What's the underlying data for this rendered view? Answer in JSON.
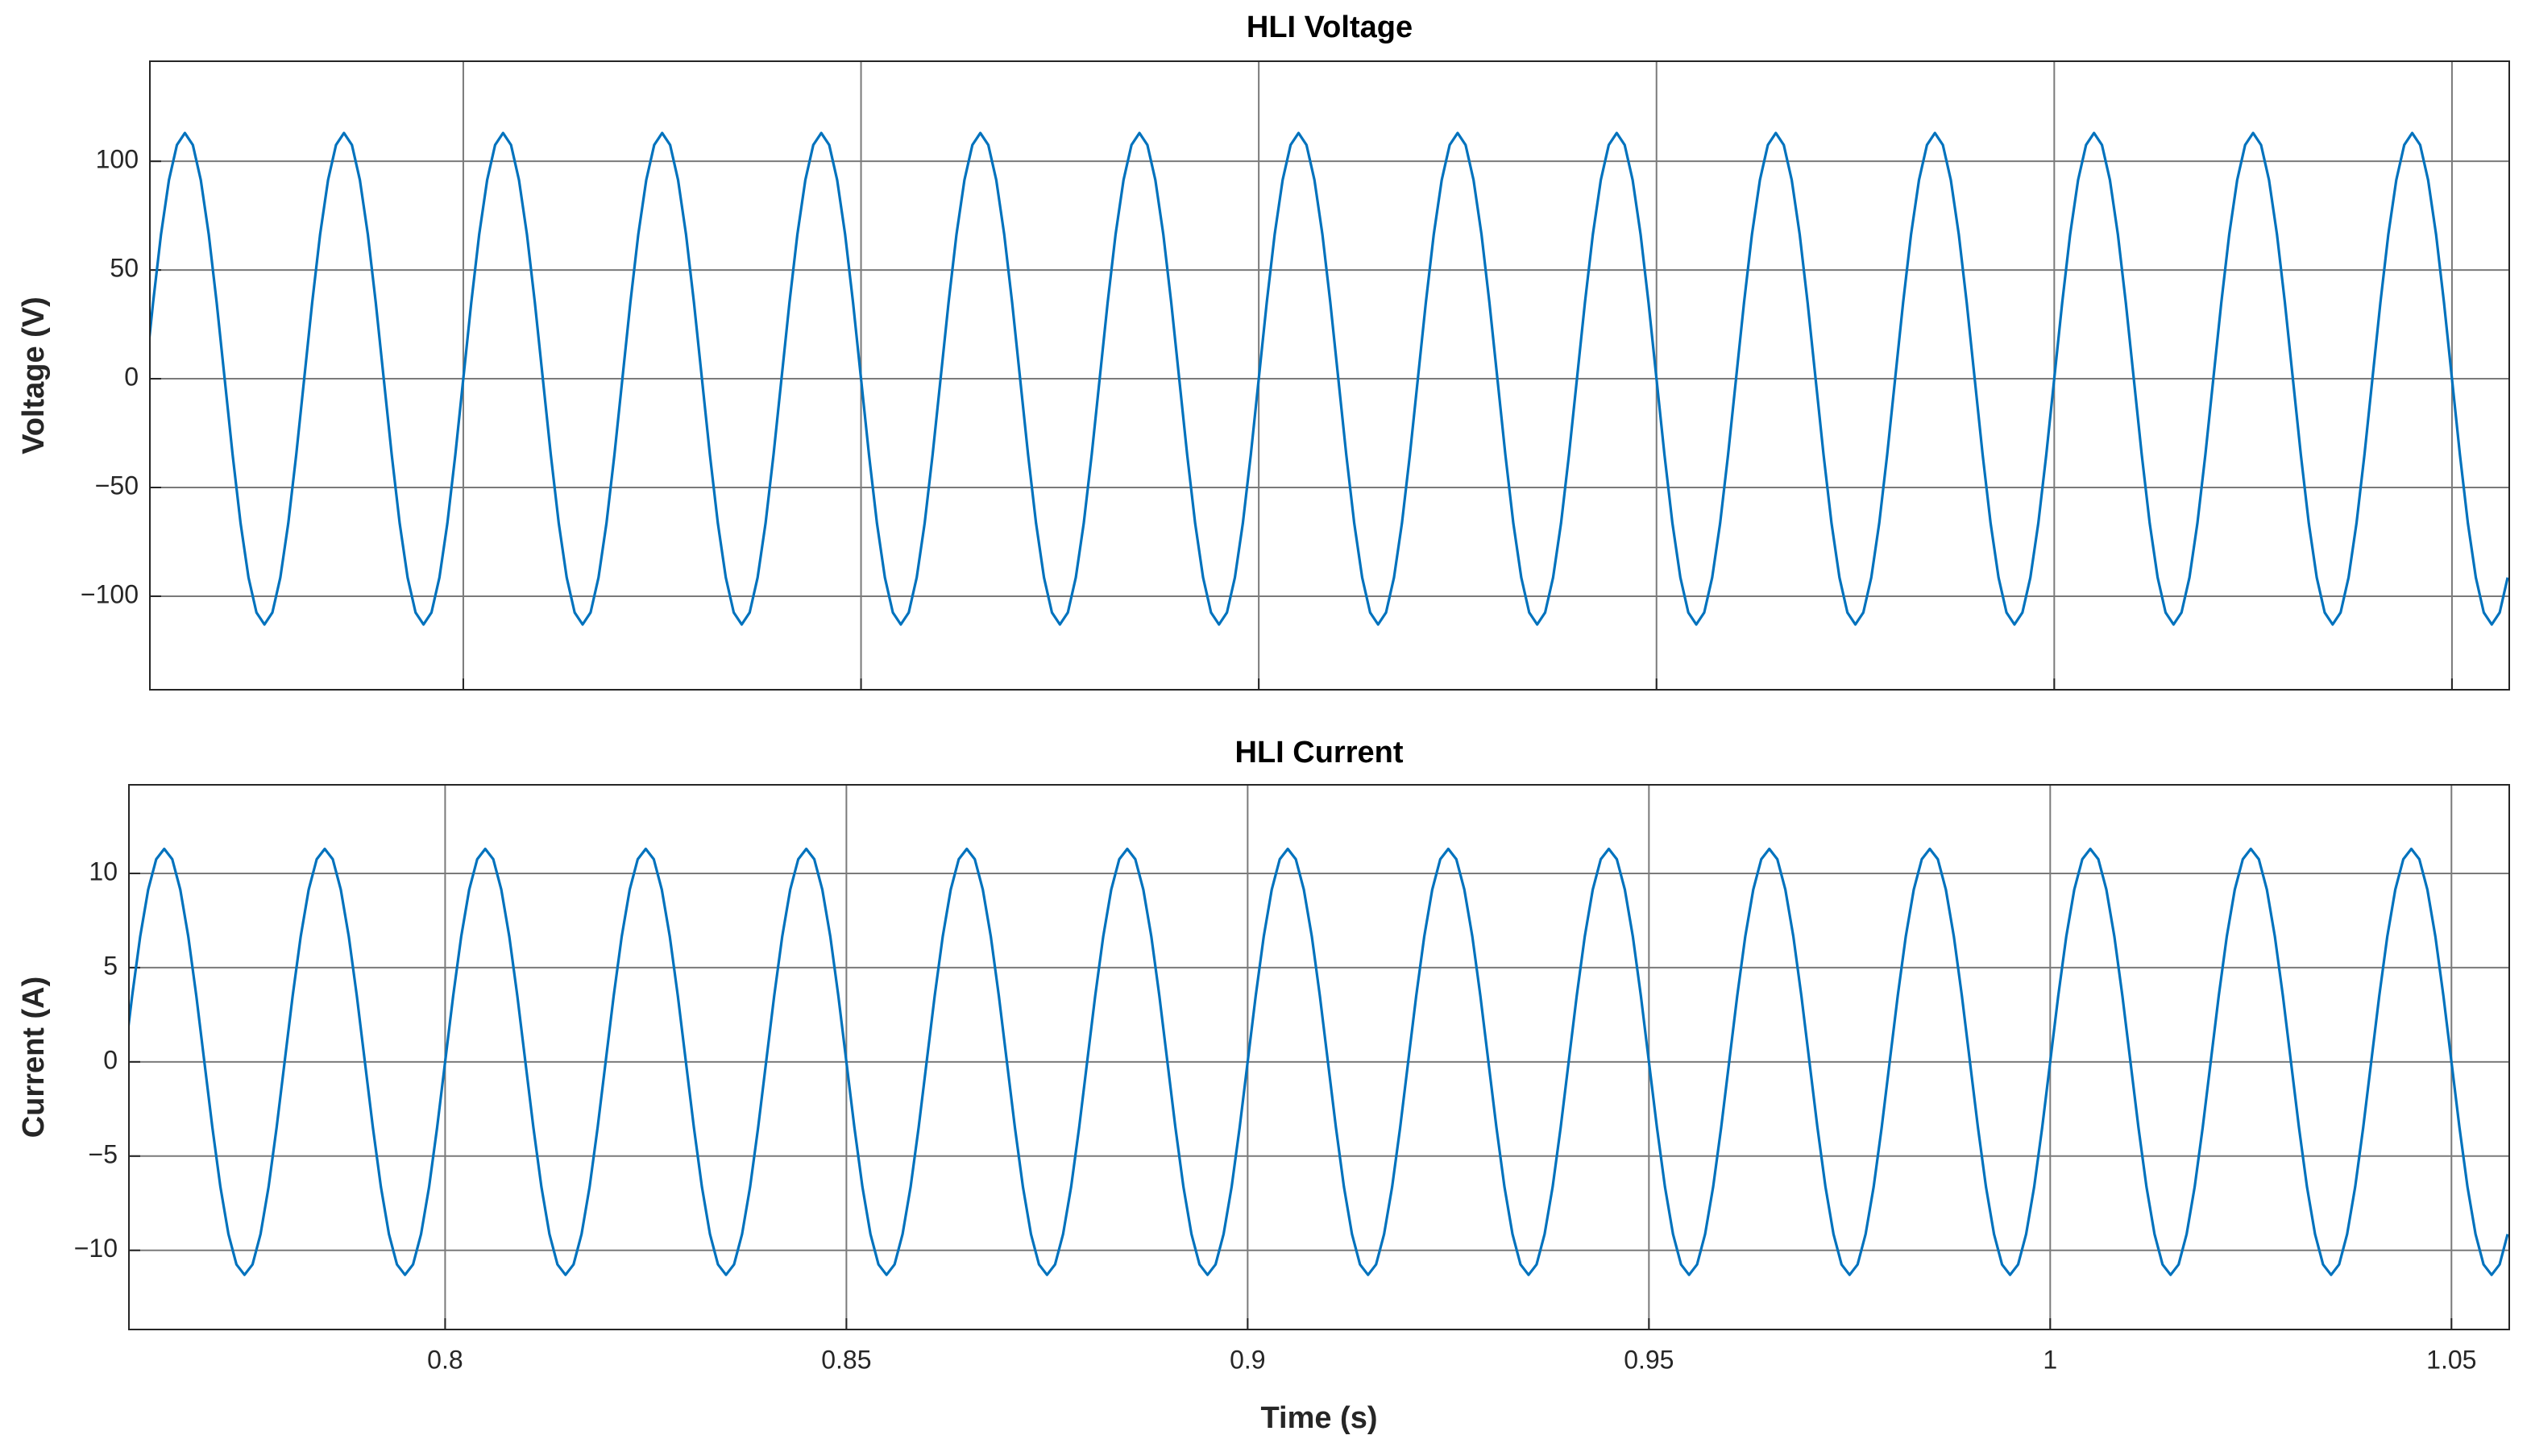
{
  "chart_data": [
    {
      "type": "line",
      "title": "HLI Voltage",
      "ylabel": "Voltage (V)",
      "color": "#0072bd",
      "grid": true,
      "xlim": [
        0.7606,
        1.0572
      ],
      "xticks": [
        0.8,
        0.85,
        0.9,
        0.95,
        1,
        1.05
      ],
      "ylim": [
        -143,
        146
      ],
      "yticks": [
        {
          "value": -100,
          "label": "−100"
        },
        {
          "value": -50,
          "label": "−50"
        },
        0,
        50,
        100
      ],
      "x": [
        0.76,
        0.761,
        0.762,
        0.763,
        0.764,
        0.765,
        0.766,
        0.767,
        0.768,
        0.769,
        0.77,
        0.771,
        0.772,
        0.773,
        0.774,
        0.775,
        0.776,
        0.777,
        0.778,
        0.779,
        0.78,
        0.781,
        0.782,
        0.783,
        0.784,
        0.785,
        0.786,
        0.787,
        0.788,
        0.789,
        0.79,
        0.791,
        0.792,
        0.793,
        0.794,
        0.795,
        0.796,
        0.797,
        0.798,
        0.799,
        0.8,
        0.801,
        0.802,
        0.803,
        0.804,
        0.805,
        0.806,
        0.807,
        0.808,
        0.809,
        0.81,
        0.811,
        0.812,
        0.813,
        0.814,
        0.815,
        0.816,
        0.817,
        0.818,
        0.819,
        0.82,
        0.821,
        0.822,
        0.823,
        0.824,
        0.825,
        0.826,
        0.827,
        0.828,
        0.829,
        0.83,
        0.831,
        0.832,
        0.833,
        0.834,
        0.835,
        0.836,
        0.837,
        0.838,
        0.839,
        0.84,
        0.841,
        0.842,
        0.843,
        0.844,
        0.845,
        0.846,
        0.847,
        0.848,
        0.849,
        0.85,
        0.851,
        0.852,
        0.853,
        0.854,
        0.855,
        0.856,
        0.857,
        0.858,
        0.859,
        0.86,
        0.861,
        0.862,
        0.863,
        0.864,
        0.865,
        0.866,
        0.867,
        0.868,
        0.869,
        0.87,
        0.871,
        0.872,
        0.873,
        0.874,
        0.875,
        0.876,
        0.877,
        0.878,
        0.879,
        0.88,
        0.881,
        0.882,
        0.883,
        0.884,
        0.885,
        0.886,
        0.887,
        0.888,
        0.889,
        0.89,
        0.891,
        0.892,
        0.893,
        0.894,
        0.895,
        0.896,
        0.897,
        0.898,
        0.899,
        0.9,
        0.901,
        0.902,
        0.903,
        0.904,
        0.905,
        0.906,
        0.907,
        0.908,
        0.909,
        0.91,
        0.911,
        0.912,
        0.913,
        0.914,
        0.915,
        0.916,
        0.917,
        0.918,
        0.919,
        0.92,
        0.921,
        0.922,
        0.923,
        0.924,
        0.925,
        0.926,
        0.927,
        0.928,
        0.929,
        0.93,
        0.931,
        0.932,
        0.933,
        0.934,
        0.935,
        0.936,
        0.937,
        0.938,
        0.939,
        0.94,
        0.941,
        0.942,
        0.943,
        0.944,
        0.945,
        0.946,
        0.947,
        0.948,
        0.949,
        0.95,
        0.951,
        0.952,
        0.953,
        0.954,
        0.955,
        0.956,
        0.957,
        0.958,
        0.959,
        0.96,
        0.961,
        0.962,
        0.963,
        0.964,
        0.965,
        0.966,
        0.967,
        0.968,
        0.969,
        0.97,
        0.971,
        0.972,
        0.973,
        0.974,
        0.975,
        0.976,
        0.977,
        0.978,
        0.979,
        0.98,
        0.981,
        0.982,
        0.983,
        0.984,
        0.985,
        0.986,
        0.987,
        0.988,
        0.989,
        0.99,
        0.991,
        0.992,
        0.993,
        0.994,
        0.995,
        0.996,
        0.997,
        0.998,
        0.999,
        1,
        1.001,
        1.002,
        1.003,
        1.004,
        1.005,
        1.006,
        1.007,
        1.008,
        1.009,
        1.01,
        1.011,
        1.012,
        1.013,
        1.014,
        1.015,
        1.016,
        1.017,
        1.018,
        1.019,
        1.02,
        1.021,
        1.022,
        1.023,
        1.024,
        1.025,
        1.026,
        1.027,
        1.028,
        1.029,
        1.03,
        1.031,
        1.032,
        1.033,
        1.034,
        1.035,
        1.036,
        1.037,
        1.038,
        1.039,
        1.04,
        1.041,
        1.042,
        1.043,
        1.044,
        1.045,
        1.046,
        1.047,
        1.048,
        1.049,
        1.05,
        1.051,
        1.052,
        1.053,
        1.054,
        1.055,
        1.056,
        1.057
      ],
      "values": [
        0,
        34.9,
        66.4,
        91.4,
        107.5,
        113,
        107.5,
        91.4,
        66.4,
        34.9,
        0,
        -34.9,
        -66.4,
        -91.4,
        -107.5,
        -113,
        -107.5,
        -91.4,
        -66.4,
        -34.9,
        0,
        34.9,
        66.4,
        91.4,
        107.5,
        113,
        107.5,
        91.4,
        66.4,
        34.9,
        0,
        -34.9,
        -66.4,
        -91.4,
        -107.5,
        -113,
        -107.5,
        -91.4,
        -66.4,
        -34.9,
        0,
        34.9,
        66.4,
        91.4,
        107.5,
        113,
        107.5,
        91.4,
        66.4,
        34.9,
        0,
        -34.9,
        -66.4,
        -91.4,
        -107.5,
        -113,
        -107.5,
        -91.4,
        -66.4,
        -34.9,
        0,
        34.9,
        66.4,
        91.4,
        107.5,
        113,
        107.5,
        91.4,
        66.4,
        34.9,
        0,
        -34.9,
        -66.4,
        -91.4,
        -107.5,
        -113,
        -107.5,
        -91.4,
        -66.4,
        -34.9,
        0,
        34.9,
        66.4,
        91.4,
        107.5,
        113,
        107.5,
        91.4,
        66.4,
        34.9,
        0,
        -34.9,
        -66.4,
        -91.4,
        -107.5,
        -113,
        -107.5,
        -91.4,
        -66.4,
        -34.9,
        0,
        34.9,
        66.4,
        91.4,
        107.5,
        113,
        107.5,
        91.4,
        66.4,
        34.9,
        0,
        -34.9,
        -66.4,
        -91.4,
        -107.5,
        -113,
        -107.5,
        -91.4,
        -66.4,
        -34.9,
        0,
        34.9,
        66.4,
        91.4,
        107.5,
        113,
        107.5,
        91.4,
        66.4,
        34.9,
        0,
        -34.9,
        -66.4,
        -91.4,
        -107.5,
        -113,
        -107.5,
        -91.4,
        -66.4,
        -34.9,
        0,
        34.9,
        66.4,
        91.4,
        107.5,
        113,
        107.5,
        91.4,
        66.4,
        34.9,
        0,
        -34.9,
        -66.4,
        -91.4,
        -107.5,
        -113,
        -107.5,
        -91.4,
        -66.4,
        -34.9,
        0,
        34.9,
        66.4,
        91.4,
        107.5,
        113,
        107.5,
        91.4,
        66.4,
        34.9,
        0,
        -34.9,
        -66.4,
        -91.4,
        -107.5,
        -113,
        -107.5,
        -91.4,
        -66.4,
        -34.9,
        0,
        34.9,
        66.4,
        91.4,
        107.5,
        113,
        107.5,
        91.4,
        66.4,
        34.9,
        0,
        -34.9,
        -66.4,
        -91.4,
        -107.5,
        -113,
        -107.5,
        -91.4,
        -66.4,
        -34.9,
        0,
        34.9,
        66.4,
        91.4,
        107.5,
        113,
        107.5,
        91.4,
        66.4,
        34.9,
        0,
        -34.9,
        -66.4,
        -91.4,
        -107.5,
        -113,
        -107.5,
        -91.4,
        -66.4,
        -34.9,
        0,
        34.9,
        66.4,
        91.4,
        107.5,
        113,
        107.5,
        91.4,
        66.4,
        34.9,
        0,
        -34.9,
        -66.4,
        -91.4,
        -107.5,
        -113,
        -107.5,
        -91.4,
        -66.4,
        -34.9,
        0,
        34.9,
        66.4,
        91.4,
        107.5,
        113,
        107.5,
        91.4,
        66.4,
        34.9,
        0,
        -34.9,
        -66.4,
        -91.4,
        -107.5,
        -113,
        -107.5,
        -91.4,
        -66.4,
        -34.9,
        0,
        34.9,
        66.4,
        91.4,
        107.5,
        113,
        107.5,
        91.4,
        66.4,
        34.9,
        0,
        -34.9,
        -66.4,
        -91.4,
        -107.5,
        -113,
        -107.5,
        -91.4,
        -66.4,
        -34.9,
        0,
        34.9,
        66.4,
        91.4,
        107.5,
        113,
        107.5,
        91.4,
        66.4,
        34.9,
        0,
        -34.9,
        -66.4,
        -91.4,
        -107.5,
        -113,
        -107.5,
        -91.4
      ]
    },
    {
      "type": "line",
      "title": "HLI Current",
      "ylabel": "Current (A)",
      "xlabel": "Time (s)",
      "color": "#0072bd",
      "grid": true,
      "xlim": [
        0.7606,
        1.0572
      ],
      "xticks": [
        0.8,
        0.85,
        0.9,
        0.95,
        1,
        1.05
      ],
      "ylim": [
        -14.2,
        14.7
      ],
      "yticks": [
        {
          "value": -10,
          "label": "−10"
        },
        {
          "value": -5,
          "label": "−5"
        },
        0,
        5,
        10
      ],
      "x": [
        0.76,
        0.761,
        0.762,
        0.763,
        0.764,
        0.765,
        0.766,
        0.767,
        0.768,
        0.769,
        0.77,
        0.771,
        0.772,
        0.773,
        0.774,
        0.775,
        0.776,
        0.777,
        0.778,
        0.779,
        0.78,
        0.781,
        0.782,
        0.783,
        0.784,
        0.785,
        0.786,
        0.787,
        0.788,
        0.789,
        0.79,
        0.791,
        0.792,
        0.793,
        0.794,
        0.795,
        0.796,
        0.797,
        0.798,
        0.799,
        0.8,
        0.801,
        0.802,
        0.803,
        0.804,
        0.805,
        0.806,
        0.807,
        0.808,
        0.809,
        0.81,
        0.811,
        0.812,
        0.813,
        0.814,
        0.815,
        0.816,
        0.817,
        0.818,
        0.819,
        0.82,
        0.821,
        0.822,
        0.823,
        0.824,
        0.825,
        0.826,
        0.827,
        0.828,
        0.829,
        0.83,
        0.831,
        0.832,
        0.833,
        0.834,
        0.835,
        0.836,
        0.837,
        0.838,
        0.839,
        0.84,
        0.841,
        0.842,
        0.843,
        0.844,
        0.845,
        0.846,
        0.847,
        0.848,
        0.849,
        0.85,
        0.851,
        0.852,
        0.853,
        0.854,
        0.855,
        0.856,
        0.857,
        0.858,
        0.859,
        0.86,
        0.861,
        0.862,
        0.863,
        0.864,
        0.865,
        0.866,
        0.867,
        0.868,
        0.869,
        0.87,
        0.871,
        0.872,
        0.873,
        0.874,
        0.875,
        0.876,
        0.877,
        0.878,
        0.879,
        0.88,
        0.881,
        0.882,
        0.883,
        0.884,
        0.885,
        0.886,
        0.887,
        0.888,
        0.889,
        0.89,
        0.891,
        0.892,
        0.893,
        0.894,
        0.895,
        0.896,
        0.897,
        0.898,
        0.899,
        0.9,
        0.901,
        0.902,
        0.903,
        0.904,
        0.905,
        0.906,
        0.907,
        0.908,
        0.909,
        0.91,
        0.911,
        0.912,
        0.913,
        0.914,
        0.915,
        0.916,
        0.917,
        0.918,
        0.919,
        0.92,
        0.921,
        0.922,
        0.923,
        0.924,
        0.925,
        0.926,
        0.927,
        0.928,
        0.929,
        0.93,
        0.931,
        0.932,
        0.933,
        0.934,
        0.935,
        0.936,
        0.937,
        0.938,
        0.939,
        0.94,
        0.941,
        0.942,
        0.943,
        0.944,
        0.945,
        0.946,
        0.947,
        0.948,
        0.949,
        0.95,
        0.951,
        0.952,
        0.953,
        0.954,
        0.955,
        0.956,
        0.957,
        0.958,
        0.959,
        0.96,
        0.961,
        0.962,
        0.963,
        0.964,
        0.965,
        0.966,
        0.967,
        0.968,
        0.969,
        0.97,
        0.971,
        0.972,
        0.973,
        0.974,
        0.975,
        0.976,
        0.977,
        0.978,
        0.979,
        0.98,
        0.981,
        0.982,
        0.983,
        0.984,
        0.985,
        0.986,
        0.987,
        0.988,
        0.989,
        0.99,
        0.991,
        0.992,
        0.993,
        0.994,
        0.995,
        0.996,
        0.997,
        0.998,
        0.999,
        1,
        1.001,
        1.002,
        1.003,
        1.004,
        1.005,
        1.006,
        1.007,
        1.008,
        1.009,
        1.01,
        1.011,
        1.012,
        1.013,
        1.014,
        1.015,
        1.016,
        1.017,
        1.018,
        1.019,
        1.02,
        1.021,
        1.022,
        1.023,
        1.024,
        1.025,
        1.026,
        1.027,
        1.028,
        1.029,
        1.03,
        1.031,
        1.032,
        1.033,
        1.034,
        1.035,
        1.036,
        1.037,
        1.038,
        1.039,
        1.04,
        1.041,
        1.042,
        1.043,
        1.044,
        1.045,
        1.046,
        1.047,
        1.048,
        1.049,
        1.05,
        1.051,
        1.052,
        1.053,
        1.054,
        1.055,
        1.056,
        1.057
      ],
      "values": [
        0,
        3.49,
        6.64,
        9.14,
        10.75,
        11.3,
        10.75,
        9.14,
        6.64,
        3.49,
        0,
        -3.49,
        -6.64,
        -9.14,
        -10.75,
        -11.3,
        -10.75,
        -9.14,
        -6.64,
        -3.49,
        0,
        3.49,
        6.64,
        9.14,
        10.75,
        11.3,
        10.75,
        9.14,
        6.64,
        3.49,
        0,
        -3.49,
        -6.64,
        -9.14,
        -10.75,
        -11.3,
        -10.75,
        -9.14,
        -6.64,
        -3.49,
        0,
        3.49,
        6.64,
        9.14,
        10.75,
        11.3,
        10.75,
        9.14,
        6.64,
        3.49,
        0,
        -3.49,
        -6.64,
        -9.14,
        -10.75,
        -11.3,
        -10.75,
        -9.14,
        -6.64,
        -3.49,
        0,
        3.49,
        6.64,
        9.14,
        10.75,
        11.3,
        10.75,
        9.14,
        6.64,
        3.49,
        0,
        -3.49,
        -6.64,
        -9.14,
        -10.75,
        -11.3,
        -10.75,
        -9.14,
        -6.64,
        -3.49,
        0,
        3.49,
        6.64,
        9.14,
        10.75,
        11.3,
        10.75,
        9.14,
        6.64,
        3.49,
        0,
        -3.49,
        -6.64,
        -9.14,
        -10.75,
        -11.3,
        -10.75,
        -9.14,
        -6.64,
        -3.49,
        0,
        3.49,
        6.64,
        9.14,
        10.75,
        11.3,
        10.75,
        9.14,
        6.64,
        3.49,
        0,
        -3.49,
        -6.64,
        -9.14,
        -10.75,
        -11.3,
        -10.75,
        -9.14,
        -6.64,
        -3.49,
        0,
        3.49,
        6.64,
        9.14,
        10.75,
        11.3,
        10.75,
        9.14,
        6.64,
        3.49,
        0,
        -3.49,
        -6.64,
        -9.14,
        -10.75,
        -11.3,
        -10.75,
        -9.14,
        -6.64,
        -3.49,
        0,
        3.49,
        6.64,
        9.14,
        10.75,
        11.3,
        10.75,
        9.14,
        6.64,
        3.49,
        0,
        -3.49,
        -6.64,
        -9.14,
        -10.75,
        -11.3,
        -10.75,
        -9.14,
        -6.64,
        -3.49,
        0,
        3.49,
        6.64,
        9.14,
        10.75,
        11.3,
        10.75,
        9.14,
        6.64,
        3.49,
        0,
        -3.49,
        -6.64,
        -9.14,
        -10.75,
        -11.3,
        -10.75,
        -9.14,
        -6.64,
        -3.49,
        0,
        3.49,
        6.64,
        9.14,
        10.75,
        11.3,
        10.75,
        9.14,
        6.64,
        3.49,
        0,
        -3.49,
        -6.64,
        -9.14,
        -10.75,
        -11.3,
        -10.75,
        -9.14,
        -6.64,
        -3.49,
        0,
        3.49,
        6.64,
        9.14,
        10.75,
        11.3,
        10.75,
        9.14,
        6.64,
        3.49,
        0,
        -3.49,
        -6.64,
        -9.14,
        -10.75,
        -11.3,
        -10.75,
        -9.14,
        -6.64,
        -3.49,
        0,
        3.49,
        6.64,
        9.14,
        10.75,
        11.3,
        10.75,
        9.14,
        6.64,
        3.49,
        0,
        -3.49,
        -6.64,
        -9.14,
        -10.75,
        -11.3,
        -10.75,
        -9.14,
        -6.64,
        -3.49,
        0,
        3.49,
        6.64,
        9.14,
        10.75,
        11.3,
        10.75,
        9.14,
        6.64,
        3.49,
        0,
        -3.49,
        -6.64,
        -9.14,
        -10.75,
        -11.3,
        -10.75,
        -9.14,
        -6.64,
        -3.49,
        0,
        3.49,
        6.64,
        9.14,
        10.75,
        11.3,
        10.75,
        9.14,
        6.64,
        3.49,
        0,
        -3.49,
        -6.64,
        -9.14,
        -10.75,
        -11.3,
        -10.75,
        -9.14,
        -6.64,
        -3.49,
        0,
        3.49,
        6.64,
        9.14,
        10.75,
        11.3,
        10.75,
        9.14,
        6.64,
        3.49,
        0,
        -3.49,
        -6.64,
        -9.14,
        -10.75,
        -11.3,
        -10.75,
        -9.14
      ]
    }
  ]
}
